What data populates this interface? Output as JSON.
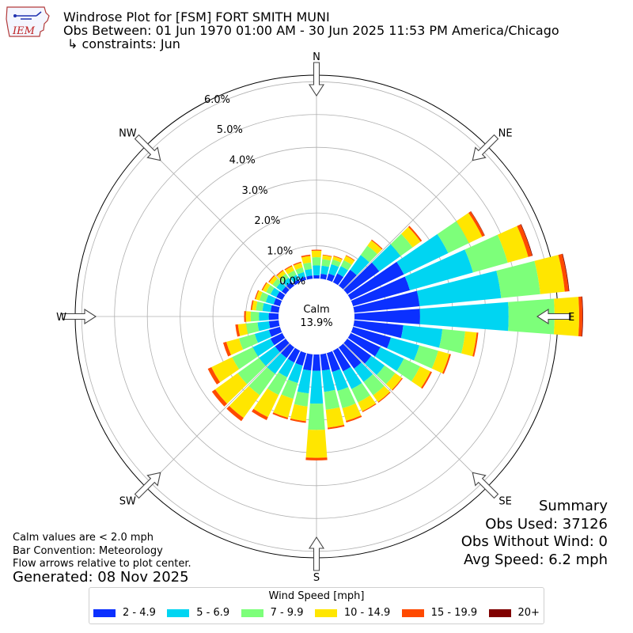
{
  "header": {
    "logo_text": "IEM",
    "title_line1": "Windrose Plot for [FSM] FORT SMITH MUNI",
    "title_line2": "Obs Between: 01 Jun 1970 01:00 AM - 30 Jun 2025 11:53 PM America/Chicago",
    "title_line3": "↳ constraints: Jun"
  },
  "notes": {
    "line1": "Calm values are < 2.0 mph",
    "line2": "Bar Convention: Meteorology",
    "line3": "Flow arrows relative to plot center.",
    "generated": "Generated: 08 Nov 2025"
  },
  "summary": {
    "title": "Summary",
    "obs_used": "Obs Used: 37126",
    "obs_without_wind": "Obs Without Wind: 0",
    "avg_speed": "Avg Speed: 6.2 mph"
  },
  "legend": {
    "title": "Wind Speed [mph]",
    "items": [
      {
        "label": "2 - 4.9",
        "color": "#0b30ff"
      },
      {
        "label": "5 - 6.9",
        "color": "#00d5f2"
      },
      {
        "label": "7 - 9.9",
        "color": "#7dff7a"
      },
      {
        "label": "10 - 14.9",
        "color": "#ffe600"
      },
      {
        "label": "15 - 19.9",
        "color": "#ff4a00"
      },
      {
        "label": "20+",
        "color": "#800000"
      }
    ]
  },
  "chart_data": {
    "type": "windrose",
    "calm_label": "Calm",
    "calm_value": "13.9%",
    "directions": [
      "N",
      "NE",
      "E",
      "SE",
      "S",
      "SW",
      "W",
      "NW"
    ],
    "radial_ticks": [
      "0.0%",
      "1.0%",
      "2.0%",
      "3.0%",
      "4.0%",
      "5.0%",
      "6.0%"
    ],
    "rlim": [
      0,
      6.2
    ],
    "speed_bins": [
      "2 - 4.9",
      "5 - 6.9",
      "7 - 9.9",
      "10 - 14.9",
      "15 - 19.9",
      "20+"
    ],
    "bins_deg": [
      0,
      10,
      20,
      30,
      40,
      50,
      60,
      70,
      80,
      90,
      100,
      110,
      120,
      130,
      140,
      150,
      160,
      170,
      180,
      190,
      200,
      210,
      220,
      230,
      240,
      250,
      260,
      270,
      280,
      290,
      300,
      310,
      320,
      330,
      340,
      350
    ],
    "frequencies_pct": [
      [
        0.1,
        0.3,
        0.25,
        0.2,
        0.03,
        0.0
      ],
      [
        0.15,
        0.25,
        0.2,
        0.12,
        0.02,
        0.0
      ],
      [
        0.2,
        0.3,
        0.15,
        0.1,
        0.02,
        0.0
      ],
      [
        0.3,
        0.25,
        0.2,
        0.15,
        0.02,
        0.0
      ],
      [
        0.6,
        0.55,
        0.35,
        0.2,
        0.03,
        0.0
      ],
      [
        1.2,
        0.8,
        0.45,
        0.3,
        0.05,
        0.0
      ],
      [
        1.8,
        1.5,
        0.7,
        0.45,
        0.08,
        0.01
      ],
      [
        1.8,
        2.0,
        1.1,
        0.65,
        0.12,
        0.02
      ],
      [
        2.0,
        2.5,
        1.2,
        0.75,
        0.12,
        0.02
      ],
      [
        2.0,
        2.7,
        1.4,
        0.75,
        0.1,
        0.02
      ],
      [
        1.5,
        1.2,
        0.7,
        0.35,
        0.05,
        0.0
      ],
      [
        1.2,
        0.9,
        0.6,
        0.35,
        0.05,
        0.0
      ],
      [
        1.0,
        0.8,
        0.55,
        0.35,
        0.05,
        0.0
      ],
      [
        0.9,
        0.5,
        0.4,
        0.25,
        0.03,
        0.0
      ],
      [
        0.8,
        0.5,
        0.5,
        0.25,
        0.03,
        0.0
      ],
      [
        0.7,
        0.6,
        0.45,
        0.3,
        0.03,
        0.0
      ],
      [
        0.6,
        0.6,
        0.55,
        0.4,
        0.05,
        0.0
      ],
      [
        0.5,
        0.65,
        0.55,
        0.55,
        0.05,
        0.0
      ],
      [
        0.5,
        1.0,
        0.8,
        0.85,
        0.08,
        0.0
      ],
      [
        0.5,
        0.7,
        0.4,
        0.45,
        0.05,
        0.0
      ],
      [
        0.4,
        0.55,
        0.5,
        0.6,
        0.05,
        0.0
      ],
      [
        0.4,
        0.5,
        0.6,
        0.75,
        0.1,
        0.0
      ],
      [
        0.4,
        0.6,
        0.8,
        0.85,
        0.12,
        0.0
      ],
      [
        0.4,
        0.6,
        0.8,
        0.85,
        0.12,
        0.0
      ],
      [
        0.4,
        0.6,
        0.7,
        0.7,
        0.12,
        0.0
      ],
      [
        0.35,
        0.45,
        0.5,
        0.4,
        0.1,
        0.0
      ],
      [
        0.3,
        0.35,
        0.35,
        0.25,
        0.08,
        0.0
      ],
      [
        0.3,
        0.3,
        0.25,
        0.15,
        0.05,
        0.0
      ],
      [
        0.25,
        0.25,
        0.2,
        0.12,
        0.04,
        0.0
      ],
      [
        0.2,
        0.25,
        0.2,
        0.12,
        0.03,
        0.0
      ],
      [
        0.2,
        0.2,
        0.15,
        0.12,
        0.03,
        0.0
      ],
      [
        0.15,
        0.2,
        0.15,
        0.12,
        0.03,
        0.0
      ],
      [
        0.15,
        0.15,
        0.15,
        0.12,
        0.03,
        0.0
      ],
      [
        0.1,
        0.15,
        0.15,
        0.15,
        0.03,
        0.0
      ],
      [
        0.1,
        0.15,
        0.15,
        0.15,
        0.03,
        0.0
      ],
      [
        0.1,
        0.2,
        0.2,
        0.2,
        0.04,
        0.0
      ]
    ]
  }
}
